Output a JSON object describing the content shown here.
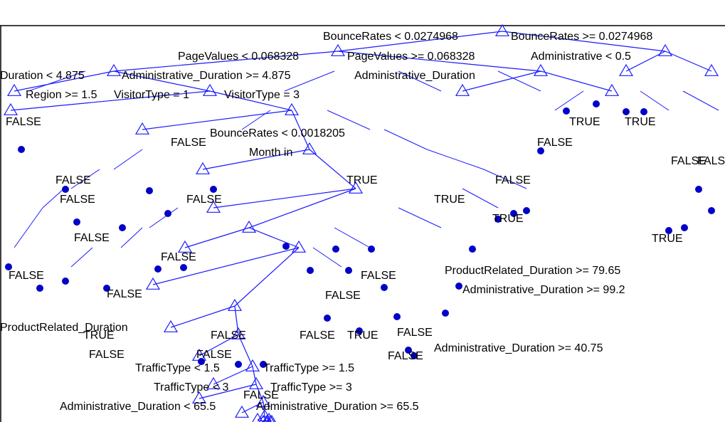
{
  "colors": {
    "edge": "#1a1aff",
    "leaf": "#0000c8",
    "text": "#000000",
    "border": "#000000"
  },
  "nodes": [
    {
      "id": "root",
      "parent": null
    },
    {
      "id": "n1",
      "parent": "root"
    },
    {
      "id": "n2",
      "parent": "root"
    },
    {
      "id": "n3",
      "parent": "n1"
    },
    {
      "id": "n4",
      "parent": "n1"
    },
    {
      "id": "n5",
      "parent": "n2"
    },
    {
      "id": "n6",
      "parent": "n2"
    },
    {
      "id": "n7",
      "parent": "n3"
    },
    {
      "id": "n8",
      "parent": "n3"
    },
    {
      "id": "n9",
      "parent": "n4"
    },
    {
      "id": "n10",
      "parent": "n4"
    },
    {
      "id": "n11",
      "parent": "n8"
    },
    {
      "id": "n12",
      "parent": "n8"
    },
    {
      "id": "n13",
      "parent": "n12"
    },
    {
      "id": "n14",
      "parent": "n12"
    },
    {
      "id": "n15",
      "parent": "n14"
    },
    {
      "id": "n16",
      "parent": "n14"
    },
    {
      "id": "n17",
      "parent": "n16"
    },
    {
      "id": "n18",
      "parent": "n16"
    },
    {
      "id": "n19",
      "parent": "n18"
    },
    {
      "id": "n20",
      "parent": "n18"
    },
    {
      "id": "n21",
      "parent": "n20"
    },
    {
      "id": "n22",
      "parent": "n20"
    },
    {
      "id": "n23",
      "parent": "n22"
    },
    {
      "id": "n24",
      "parent": "n22"
    },
    {
      "id": "n25",
      "parent": "n24"
    },
    {
      "id": "n26",
      "parent": "n24"
    },
    {
      "id": "n27",
      "parent": "n26"
    },
    {
      "id": "n28",
      "parent": "n26"
    },
    {
      "id": "n29",
      "parent": "n28"
    },
    {
      "id": "n30",
      "parent": "n28"
    },
    {
      "id": "n31",
      "parent": "n30"
    },
    {
      "id": "n32",
      "parent": "n30"
    },
    {
      "id": "n33",
      "parent": "n32"
    },
    {
      "id": "n34",
      "parent": "n32"
    },
    {
      "id": "n35",
      "parent": "n34"
    },
    {
      "id": "n36",
      "parent": "n34"
    },
    {
      "id": "n37",
      "parent": "n36"
    },
    {
      "id": "n38",
      "parent": "n36"
    }
  ],
  "labels": [
    {
      "text": "BounceRates < 0.0274968"
    },
    {
      "text": "BounceRates >= 0.0274968"
    },
    {
      "text": "PageValues < 0.068328"
    },
    {
      "text": "PageValues >= 0.068328"
    },
    {
      "text": "Administrative < 0.5"
    },
    {
      "text": "Administrative_Duration >= 4.875"
    },
    {
      "text": "Duration < 4.875"
    },
    {
      "text": "Administrative_Duration"
    },
    {
      "text": "Region >= 1.5"
    },
    {
      "text": "VisitorType = 1"
    },
    {
      "text": "VisitorType = 3"
    },
    {
      "text": "BounceRates < 0.0018205"
    },
    {
      "text": "ProductRelated_Duration >= 79.65"
    },
    {
      "text": "Administrative_Duration >= 99.2"
    },
    {
      "text": "Administrative_Duration >= 40.75"
    },
    {
      "text": "TrafficType < 1.5"
    },
    {
      "text": "TrafficType >= 1.5"
    },
    {
      "text": "TrafficType < 3"
    },
    {
      "text": "TrafficType >= 3"
    },
    {
      "text": "Administrative_Duration < 65.5"
    },
    {
      "text": "Administrative_Duration >= 65.5"
    },
    {
      "text": "Month in"
    },
    {
      "text": "ProductRelated_Duration"
    },
    {
      "text": "FALSE"
    },
    {
      "text": "FALSE"
    },
    {
      "text": "FALSE"
    },
    {
      "text": "TRUE"
    },
    {
      "text": "TRUE"
    },
    {
      "text": "FALSE"
    },
    {
      "text": "TRUE"
    },
    {
      "text": "FALSE"
    },
    {
      "text": "FALSE"
    },
    {
      "text": "FALSE"
    },
    {
      "text": "FALSE"
    },
    {
      "text": "FALSE"
    },
    {
      "text": "TRUE"
    },
    {
      "text": "FALSE"
    },
    {
      "text": "TRUE"
    },
    {
      "text": "FALSE"
    },
    {
      "text": "FALSE"
    },
    {
      "text": "FALSE"
    },
    {
      "text": "TRUE"
    },
    {
      "text": "FALSE"
    },
    {
      "text": "FALSE"
    },
    {
      "text": "TRUE"
    },
    {
      "text": "FALSE"
    },
    {
      "text": "FALSE"
    },
    {
      "text": "FALSE"
    },
    {
      "text": "TRUE"
    },
    {
      "text": "FALSE"
    },
    {
      "text": "FALSE"
    },
    {
      "text": "FALSE"
    },
    {
      "text": "FALSE"
    }
  ]
}
